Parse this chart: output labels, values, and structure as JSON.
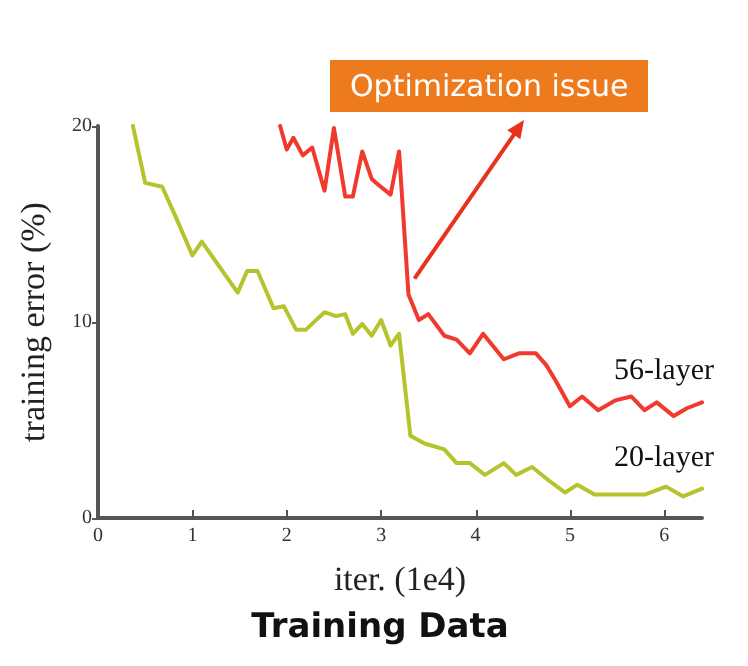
{
  "chart_data": {
    "type": "line",
    "title": "Training Data",
    "xlabel": "iter. (1e4)",
    "ylabel": "training error (%)",
    "xlim": [
      0,
      6.4
    ],
    "xticks": [
      0,
      1,
      2,
      3,
      4,
      5,
      6
    ],
    "ylim": [
      0,
      20
    ],
    "yticks": [
      0,
      10,
      20
    ],
    "grid": false,
    "legend": false,
    "marker": "none",
    "line_style": "solid",
    "annotations": [
      {
        "text": "Optimization issue",
        "x": 3.29,
        "y": 11.4
      }
    ],
    "series": [
      {
        "name": "56-layer",
        "color": "#f03a2e",
        "x": [
          1.93,
          2.0,
          2.07,
          2.17,
          2.27,
          2.4,
          2.5,
          2.62,
          2.7,
          2.8,
          2.9,
          2.97,
          3.1,
          3.19,
          3.29,
          3.4,
          3.5,
          3.67,
          3.8,
          3.94,
          4.08,
          4.3,
          4.46,
          4.64,
          4.75,
          4.85,
          5.0,
          5.13,
          5.3,
          5.48,
          5.65,
          5.79,
          5.92,
          6.1,
          6.24,
          6.4
        ],
        "values": [
          20,
          18.8,
          19.4,
          18.5,
          18.9,
          16.7,
          19.9,
          16.4,
          16.4,
          18.7,
          17.3,
          17.0,
          16.5,
          18.7,
          11.4,
          10.1,
          10.4,
          9.3,
          9.1,
          8.4,
          9.4,
          8.1,
          8.4,
          8.4,
          7.8,
          7.0,
          5.7,
          6.2,
          5.5,
          6.0,
          6.2,
          5.5,
          5.9,
          5.2,
          5.6,
          5.9
        ]
      },
      {
        "name": "20-layer",
        "color": "#b5c42c",
        "x": [
          0.37,
          0.5,
          0.68,
          0.82,
          1.0,
          1.1,
          1.48,
          1.58,
          1.69,
          1.86,
          1.97,
          2.1,
          2.2,
          2.4,
          2.52,
          2.62,
          2.7,
          2.8,
          2.9,
          3.0,
          3.1,
          3.19,
          3.31,
          3.46,
          3.67,
          3.8,
          3.94,
          4.1,
          4.3,
          4.43,
          4.6,
          4.78,
          4.95,
          5.08,
          5.26,
          5.48,
          5.8,
          6.02,
          6.2,
          6.4
        ],
        "values": [
          20,
          17.1,
          16.9,
          15.4,
          13.4,
          14.1,
          11.5,
          12.6,
          12.6,
          10.7,
          10.8,
          9.6,
          9.6,
          10.5,
          10.3,
          10.4,
          9.4,
          9.9,
          9.3,
          10.1,
          8.8,
          9.4,
          4.2,
          3.8,
          3.5,
          2.8,
          2.8,
          2.2,
          2.8,
          2.2,
          2.6,
          1.9,
          1.3,
          1.7,
          1.2,
          1.2,
          1.2,
          1.6,
          1.1,
          1.5
        ]
      }
    ]
  }
}
